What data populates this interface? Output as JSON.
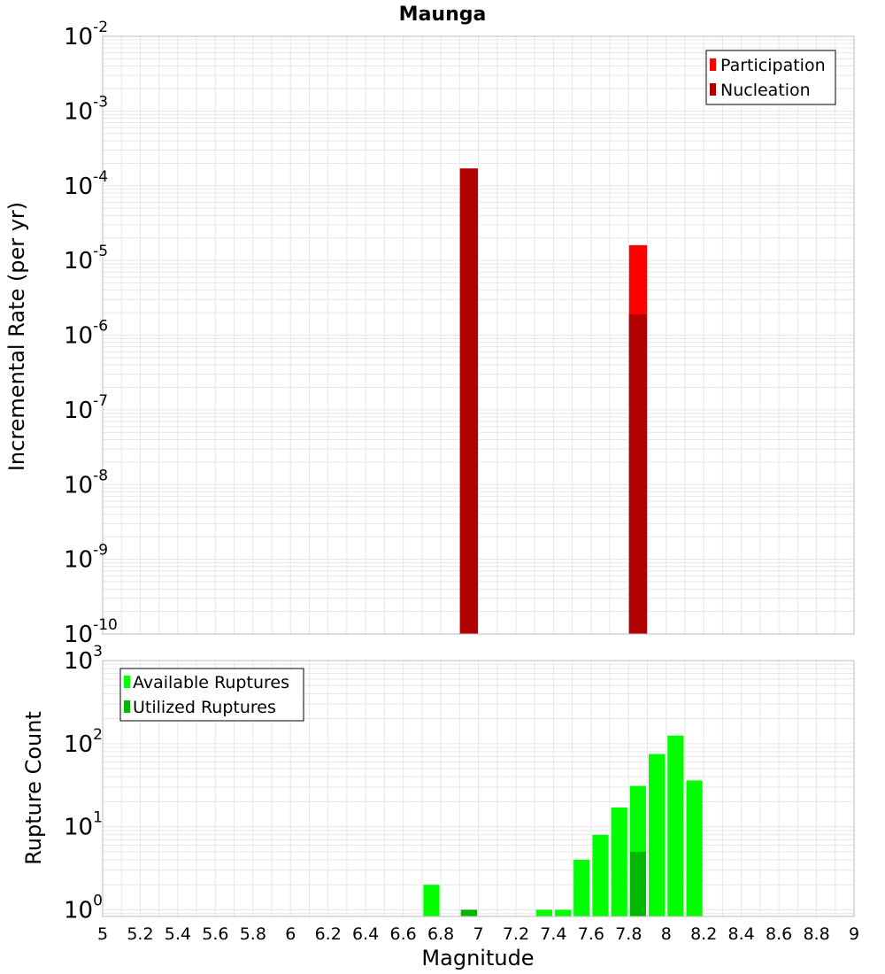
{
  "colors": {
    "participation": "#ff0000",
    "nucleation": "#b20000",
    "available": "#00ff00",
    "utilized": "#00b800",
    "grid": "#e6e6e6",
    "frame": "#bbbbbb"
  },
  "chart_data": {
    "type": "bar",
    "title": "Maunga",
    "xlabel": "Magnitude",
    "xlim": [
      5,
      9
    ],
    "xticks": [
      "5",
      "5.2",
      "5.4",
      "5.6",
      "5.8",
      "6",
      "6.2",
      "6.4",
      "6.6",
      "6.8",
      "7",
      "7.2",
      "7.4",
      "7.6",
      "7.8",
      "8",
      "8.2",
      "8.4",
      "8.6",
      "8.8",
      "9"
    ],
    "bin_width": 0.1,
    "panels": [
      {
        "ylabel": "Incremental Rate (per yr)",
        "yscale": "log",
        "ylim_exp": [
          -10,
          -2
        ],
        "yticks": [
          {
            "base": "10",
            "exp": "-2"
          },
          {
            "base": "10",
            "exp": "-3"
          },
          {
            "base": "10",
            "exp": "-4"
          },
          {
            "base": "10",
            "exp": "-5"
          },
          {
            "base": "10",
            "exp": "-6"
          },
          {
            "base": "10",
            "exp": "-7"
          },
          {
            "base": "10",
            "exp": "-8"
          },
          {
            "base": "10",
            "exp": "-9"
          },
          {
            "base": "10",
            "exp": "-10"
          }
        ],
        "legend": {
          "position": "top-right",
          "entries": [
            "Participation",
            "Nucleation"
          ]
        },
        "series": [
          {
            "name": "Participation",
            "color": "participation",
            "x": [
              6.95,
              7.85
            ],
            "values": [
              0.00017,
              1.6e-05
            ]
          },
          {
            "name": "Nucleation",
            "color": "nucleation",
            "x": [
              6.95,
              7.85
            ],
            "values": [
              0.00017,
              1.9e-06
            ]
          }
        ]
      },
      {
        "ylabel": "Rupture Count",
        "yscale": "log",
        "ylim_exp": [
          -0.08,
          3
        ],
        "yticks": [
          {
            "base": "10",
            "exp": "0"
          },
          {
            "base": "10",
            "exp": "1"
          },
          {
            "base": "10",
            "exp": "2"
          },
          {
            "base": "10",
            "exp": "3"
          }
        ],
        "legend": {
          "position": "top-left",
          "entries": [
            "Available Ruptures",
            "Utilized Ruptures"
          ]
        },
        "series": [
          {
            "name": "Available Ruptures",
            "color": "available",
            "x": [
              6.75,
              6.95,
              7.35,
              7.45,
              7.55,
              7.65,
              7.75,
              7.85,
              7.95,
              8.05,
              8.15
            ],
            "values": [
              2,
              1,
              1,
              1,
              4,
              8,
              17,
              31,
              75,
              125,
              36
            ]
          },
          {
            "name": "Utilized Ruptures",
            "color": "utilized",
            "x": [
              6.95,
              7.85
            ],
            "values": [
              1,
              5
            ]
          }
        ]
      }
    ]
  }
}
